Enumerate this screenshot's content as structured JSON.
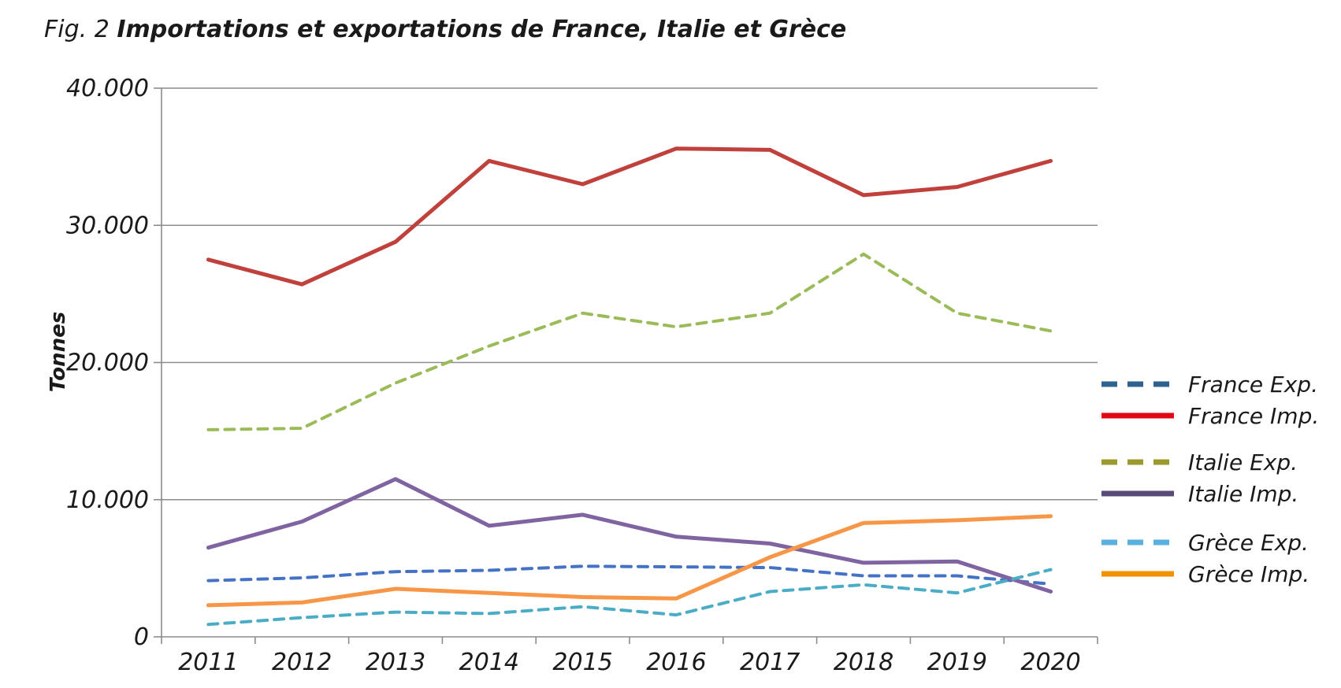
{
  "title": {
    "prefix": "Fig. 2",
    "main": "Importations et exportations de France, Italie et Grèce"
  },
  "chart_data": {
    "type": "line",
    "title": "Importations et exportations de France, Italie et Grèce",
    "ylabel": "Tonnes",
    "xlabel": "",
    "ylim": [
      0,
      40000
    ],
    "yticks": [
      0,
      10000,
      20000,
      30000,
      40000
    ],
    "ytick_labels": [
      "0",
      "10.000",
      "20.000",
      "30.000",
      "40.000"
    ],
    "categories": [
      "2011",
      "2012",
      "2013",
      "2014",
      "2015",
      "2016",
      "2017",
      "2018",
      "2019",
      "2020"
    ],
    "grid": "horizontal",
    "legend_position": "right",
    "series": [
      {
        "name": "France Exp.",
        "dashed": true,
        "line_color": "#4472c4",
        "legend_color": "#2e6391",
        "values": [
          4100,
          4300,
          4750,
          4850,
          5150,
          5100,
          5050,
          4450,
          4450,
          3850
        ]
      },
      {
        "name": "France Imp.",
        "dashed": false,
        "line_color": "#c0413c",
        "legend_color": "#e30613",
        "values": [
          27500,
          25700,
          28800,
          34700,
          33000,
          35600,
          35500,
          32200,
          32800,
          34700
        ]
      },
      {
        "name": "Italie Exp.",
        "dashed": true,
        "line_color": "#9bbb59",
        "legend_color": "#9b9a2f",
        "values": [
          15100,
          15200,
          18500,
          21200,
          23600,
          22600,
          23600,
          27900,
          23600,
          22300
        ]
      },
      {
        "name": "Italie Imp.",
        "dashed": false,
        "line_color": "#8064a2",
        "legend_color": "#5a4a7a",
        "values": [
          6500,
          8400,
          11500,
          8100,
          8900,
          7300,
          6800,
          5400,
          5500,
          3300
        ]
      },
      {
        "name": "Grèce Exp.",
        "dashed": true,
        "line_color": "#4bacc6",
        "legend_color": "#5ab0e0",
        "values": [
          900,
          1400,
          1800,
          1700,
          2200,
          1600,
          3300,
          3800,
          3200,
          4900
        ]
      },
      {
        "name": "Grèce Imp.",
        "dashed": false,
        "line_color": "#f79646",
        "legend_color": "#f39200",
        "values": [
          2300,
          2500,
          3500,
          3200,
          2900,
          2800,
          5800,
          8300,
          8500,
          8800
        ]
      }
    ]
  }
}
